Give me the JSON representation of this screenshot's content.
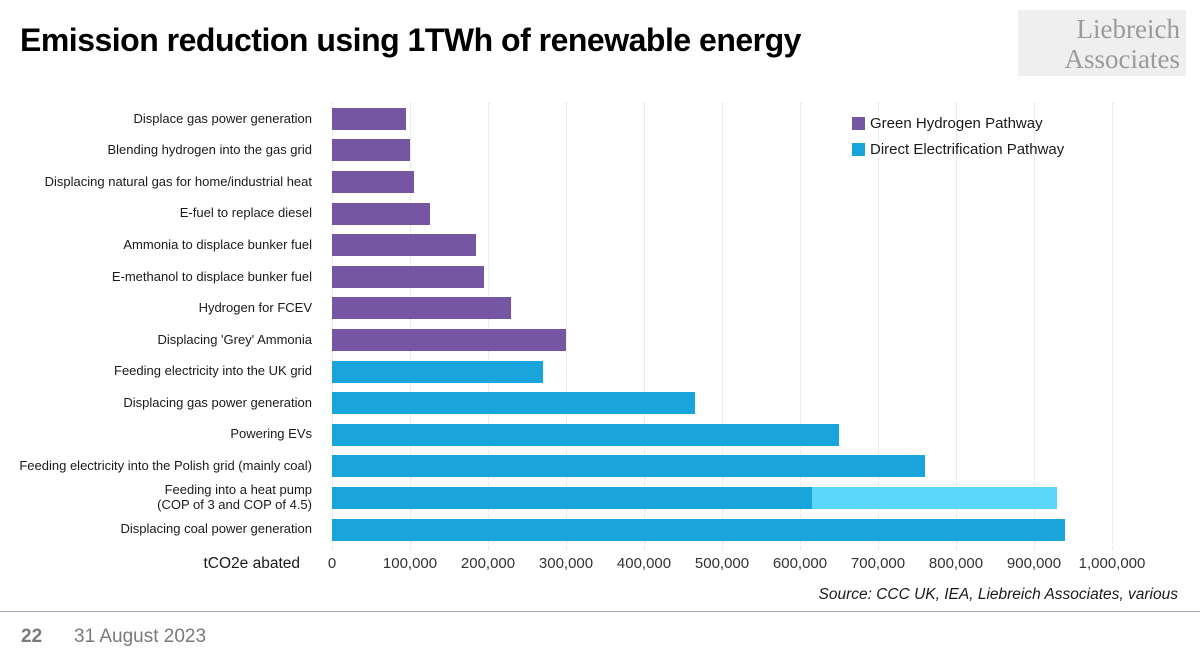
{
  "header": {
    "title": "Emission reduction using 1TWh of renewable energy",
    "logo_line1": "Liebreich",
    "logo_line2": "Associates"
  },
  "legend": [
    {
      "label": "Green Hydrogen Pathway",
      "color": "#7456a3"
    },
    {
      "label": "Direct Electrification Pathway",
      "color": "#19a5db"
    }
  ],
  "colors": {
    "green": "#7456a3",
    "electric": "#19a5db",
    "electric_light": "#5bd6f8",
    "gridline": "#d9d9d9"
  },
  "chart_data": {
    "type": "bar",
    "orientation": "horizontal",
    "title": "Emission reduction using 1TWh of renewable energy",
    "xlabel": "tCO2e abated",
    "xlim": [
      0,
      1000000
    ],
    "grid": "vertical-dotted",
    "legend_position": "top-right",
    "ticks": [
      0,
      100000,
      200000,
      300000,
      400000,
      500000,
      600000,
      700000,
      800000,
      900000,
      1000000
    ],
    "tick_labels": [
      "0",
      "100,000",
      "200,000",
      "300,000",
      "400,000",
      "500,000",
      "600,000",
      "700,000",
      "800,000",
      "900,000",
      "1,000,000"
    ],
    "series_names": [
      "Green Hydrogen Pathway",
      "Direct Electrification Pathway"
    ],
    "bars": [
      {
        "label": "Displace gas power generation",
        "series": "green",
        "value": 95000
      },
      {
        "label": "Blending hydrogen into the gas grid",
        "series": "green",
        "value": 100000
      },
      {
        "label": "Displacing natural gas for home/industrial heat",
        "series": "green",
        "value": 105000
      },
      {
        "label": "E-fuel to replace diesel",
        "series": "green",
        "value": 125000
      },
      {
        "label": "Ammonia to displace bunker fuel",
        "series": "green",
        "value": 185000
      },
      {
        "label": "E-methanol to displace bunker fuel",
        "series": "green",
        "value": 195000
      },
      {
        "label": "Hydrogen for FCEV",
        "series": "green",
        "value": 230000
      },
      {
        "label": "Displacing 'Grey' Ammonia",
        "series": "green",
        "value": 300000
      },
      {
        "label": "Feeding electricity into the UK grid",
        "series": "electric",
        "value": 270000
      },
      {
        "label": "Displacing gas power generation",
        "series": "electric",
        "value": 465000
      },
      {
        "label": "Powering EVs",
        "series": "electric",
        "value": 650000
      },
      {
        "label": "Feeding electricity into the Polish grid (mainly coal)",
        "series": "electric",
        "value": 760000
      },
      {
        "label": "Feeding into a heat pump (COP of 3 and COP of 4.5)",
        "label_lines": [
          "Feeding into a heat pump",
          "(COP of 3 and COP of 4.5)"
        ],
        "series": "electric",
        "value": 615000,
        "value_extension": 930000
      },
      {
        "label": "Displacing coal power generation",
        "series": "electric",
        "value": 940000
      }
    ]
  },
  "source": "Source: CCC UK, IEA, Liebreich Associates, various",
  "footer": {
    "page_number": "22",
    "date": "31 August 2023"
  }
}
